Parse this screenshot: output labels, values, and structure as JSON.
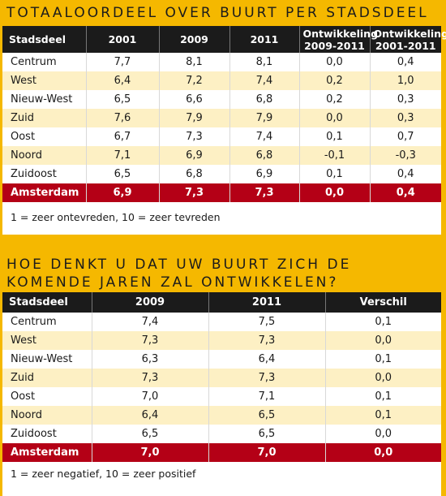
{
  "table1": {
    "title": "Totaaloordeel over buurt per stadsdeel",
    "headers": [
      "Stadsdeel",
      "2001",
      "2009",
      "2011",
      "Ontwikkeling 2009-2011",
      "Ontwikkeling 2001-2011"
    ],
    "rows": [
      [
        "Centrum",
        "7,7",
        "8,1",
        "8,1",
        "0,0",
        "0,4"
      ],
      [
        "West",
        "6,4",
        "7,2",
        "7,4",
        "0,2",
        "1,0"
      ],
      [
        "Nieuw-West",
        "6,5",
        "6,6",
        "6,8",
        "0,2",
        "0,3"
      ],
      [
        "Zuid",
        "7,6",
        "7,9",
        "7,9",
        "0,0",
        "0,3"
      ],
      [
        "Oost",
        "6,7",
        "7,3",
        "7,4",
        "0,1",
        "0,7"
      ],
      [
        "Noord",
        "7,1",
        "6,9",
        "6,8",
        "-0,1",
        "-0,3"
      ],
      [
        "Zuidoost",
        "6,5",
        "6,8",
        "6,9",
        "0,1",
        "0,4"
      ]
    ],
    "total": [
      "Amsterdam",
      "6,9",
      "7,3",
      "7,3",
      "0,0",
      "0,4"
    ],
    "note": "1 = zeer ontevreden, 10 = zeer tevreden"
  },
  "table2": {
    "title": "Hoe denkt u dat uw buurt zich de komende jaren zal ontwikkelen?",
    "headers": [
      "Stadsdeel",
      "2009",
      "2011",
      "Verschil"
    ],
    "rows": [
      [
        "Centrum",
        "7,4",
        "7,5",
        "0,1"
      ],
      [
        "West",
        "7,3",
        "7,3",
        "0,0"
      ],
      [
        "Nieuw-West",
        "6,3",
        "6,4",
        "0,1"
      ],
      [
        "Zuid",
        "7,3",
        "7,3",
        "0,0"
      ],
      [
        "Oost",
        "7,0",
        "7,1",
        "0,1"
      ],
      [
        "Noord",
        "6,4",
        "6,5",
        "0,1"
      ],
      [
        "Zuidoost",
        "6,5",
        "6,5",
        "0,0"
      ]
    ],
    "total": [
      "Amsterdam",
      "7,0",
      "7,0",
      "0,0"
    ],
    "note": "1 = zeer negatief, 10 = zeer positief"
  },
  "colors": {
    "background": "#f5b800",
    "header": "#1b1b1b",
    "stripe": "#fdf0c4",
    "total": "#b40016"
  }
}
